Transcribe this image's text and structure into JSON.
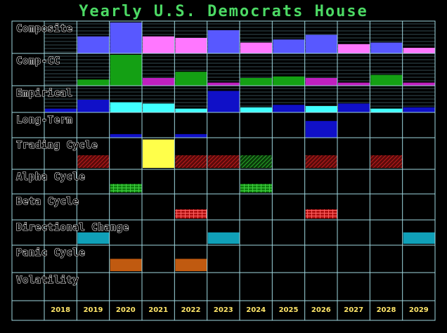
{
  "chart_data": {
    "type": "table",
    "title": "Yearly U.S. Democrats House",
    "years": [
      "2018",
      "2019",
      "2020",
      "2021",
      "2022",
      "2023",
      "2024",
      "2025",
      "2026",
      "2027",
      "2028",
      "2029"
    ],
    "rows": [
      {
        "label": "Composite",
        "kind": "bar",
        "color": "#5858ff",
        "values": [
          null,
          0.55,
          1.0,
          0.55,
          0.5,
          0.75,
          0.35,
          0.45,
          0.6,
          0.3,
          0.35,
          0.18
        ],
        "colors": [
          null,
          "#5858ff",
          "#5858ff",
          "#ff77ff",
          "#ff77ff",
          "#5858ff",
          "#ff77ff",
          "#5858ff",
          "#5858ff",
          "#ff77ff",
          "#5858ff",
          "#ff77ff"
        ]
      },
      {
        "label": "Comp-CC",
        "kind": "bar",
        "color": "#14a014",
        "values": [
          null,
          0.2,
          1.0,
          0.25,
          0.45,
          0.1,
          0.25,
          0.3,
          0.25,
          0.1,
          0.35,
          0.1
        ],
        "colors": [
          null,
          "#14a014",
          "#14a014",
          "#c020c0",
          "#14a014",
          "#c020c0",
          "#14a014",
          "#14a014",
          "#c020c0",
          "#c020c0",
          "#14a014",
          "#c020c0"
        ]
      },
      {
        "label": "Empirical",
        "kind": "bar",
        "color": "#1010c8",
        "values": [
          0.15,
          0.5,
          0.4,
          0.35,
          0.15,
          0.85,
          0.2,
          0.3,
          0.25,
          0.35,
          0.15,
          0.2
        ],
        "colors": [
          "#1010c8",
          "#1010c8",
          "#40ffff",
          "#40ffff",
          "#40ffff",
          "#1010c8",
          "#40ffff",
          "#1010c8",
          "#40ffff",
          "#1010c8",
          "#40ffff",
          "#1010c8"
        ]
      },
      {
        "label": "Long-Term",
        "kind": "bar",
        "color": "#1010c8",
        "values": [
          null,
          null,
          0.15,
          null,
          0.15,
          null,
          null,
          null,
          0.7,
          null,
          null,
          null
        ],
        "colors": [
          null,
          null,
          "#1010c8",
          null,
          "#1010c8",
          null,
          null,
          null,
          "#1010c8",
          null,
          null,
          null
        ]
      },
      {
        "label": "Trading Cycle",
        "kind": "cell",
        "cells": [
          null,
          "hatchRed",
          null,
          "#ffff4a",
          "hatchRed",
          "hatchRed",
          "hatchGreen",
          null,
          "hatchRed",
          null,
          "hatchRed",
          null
        ],
        "heights": [
          null,
          0.4,
          null,
          0.9,
          0.4,
          0.4,
          0.4,
          null,
          0.4,
          null,
          0.4,
          null
        ]
      },
      {
        "label": "Alpha Cycle",
        "kind": "cell",
        "cells": [
          null,
          null,
          "brickGreen",
          null,
          null,
          null,
          "brickGreen",
          null,
          null,
          null,
          null,
          null
        ],
        "heights": [
          null,
          null,
          0.35,
          null,
          null,
          null,
          0.35,
          null,
          null,
          null,
          null,
          null
        ]
      },
      {
        "label": "Beta Cycle",
        "kind": "cell",
        "cells": [
          null,
          null,
          null,
          null,
          "brickRed",
          null,
          null,
          null,
          "brickRed",
          null,
          null,
          null
        ],
        "heights": [
          null,
          null,
          null,
          null,
          0.35,
          null,
          null,
          null,
          0.35,
          null,
          null,
          null
        ]
      },
      {
        "label": "Directional Change",
        "kind": "cell",
        "cells": [
          null,
          "#10a0b8",
          null,
          null,
          null,
          "#10a0b8",
          null,
          null,
          null,
          null,
          null,
          "#10a0b8"
        ],
        "heights": [
          null,
          0.45,
          null,
          null,
          null,
          0.45,
          null,
          null,
          null,
          null,
          null,
          0.45
        ]
      },
      {
        "label": "Panic Cycle",
        "kind": "cell",
        "cells": [
          null,
          null,
          "#c05a10",
          null,
          "#c05a10",
          null,
          null,
          null,
          null,
          null,
          null,
          null
        ],
        "heights": [
          null,
          null,
          0.45,
          null,
          0.45,
          null,
          null,
          null,
          null,
          null,
          null,
          null
        ]
      },
      {
        "label": "Volatility",
        "kind": "cell",
        "cells": [
          null,
          null,
          null,
          null,
          null,
          null,
          null,
          null,
          null,
          null,
          null,
          null
        ],
        "heights": [
          null,
          null,
          null,
          null,
          null,
          null,
          null,
          null,
          null,
          null,
          null,
          null
        ]
      }
    ]
  }
}
